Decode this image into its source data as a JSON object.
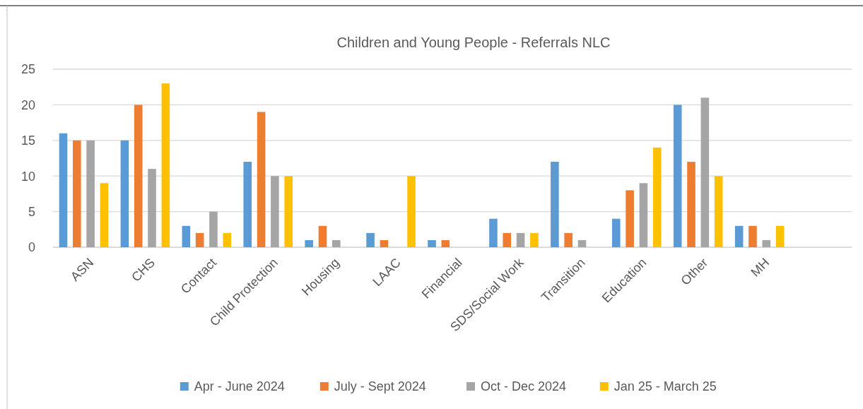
{
  "chart_data": {
    "type": "bar",
    "title": "Children and Young People - Referrals NLC",
    "categories": [
      "ASN",
      "CHS",
      "Contact",
      "Child Protection",
      "Housing",
      "LAAC",
      "Financial",
      "SDS/Social Work",
      "Transition",
      "Education",
      "Other",
      "MH",
      null
    ],
    "series": [
      {
        "name": "Apr - June 2024",
        "color": "#5b9bd5",
        "values": [
          16,
          15,
          3,
          12,
          1,
          2,
          1,
          4,
          12,
          4,
          20,
          3,
          null
        ]
      },
      {
        "name": "July - Sept 2024",
        "color": "#ed7d31",
        "values": [
          15,
          20,
          2,
          19,
          3,
          1,
          1,
          2,
          2,
          8,
          12,
          3,
          null
        ]
      },
      {
        "name": "Oct - Dec 2024",
        "color": "#a5a5a5",
        "values": [
          15,
          11,
          5,
          10,
          1,
          null,
          null,
          2,
          1,
          9,
          21,
          1,
          null
        ]
      },
      {
        "name": "Jan 25 - March 25",
        "color": "#ffc000",
        "values": [
          9,
          23,
          2,
          10,
          null,
          10,
          null,
          2,
          null,
          14,
          10,
          3,
          null
        ]
      }
    ],
    "ylim": [
      0,
      25
    ],
    "yticks": [
      0,
      5,
      10,
      15,
      20,
      25
    ],
    "grid": "y",
    "legend": "bottom"
  }
}
